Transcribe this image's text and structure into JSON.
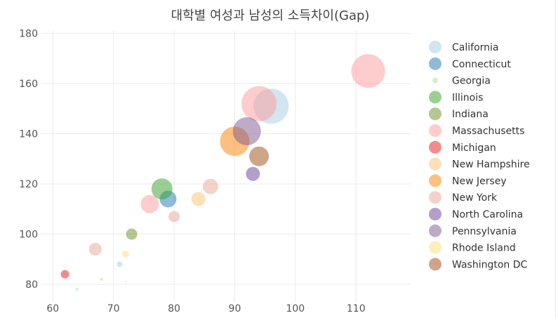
{
  "chart_data": {
    "type": "scatter",
    "title": "대학별 여성과 남성의 소득차이(Gap)",
    "xlabel": "",
    "ylabel": "",
    "xlim": [
      58,
      119
    ],
    "ylim": [
      73,
      181
    ],
    "xticks": [
      60,
      70,
      80,
      90,
      100,
      110
    ],
    "yticks": [
      80,
      100,
      120,
      140,
      160,
      180
    ],
    "grid": true,
    "legend_position": "right",
    "series": [
      {
        "name": "California",
        "color": "#a6cee3",
        "points": [
          {
            "x": 96,
            "y": 151,
            "size": 25
          },
          {
            "x": 71,
            "y": 88,
            "size": 4
          },
          {
            "x": 64,
            "y": 78,
            "size": 2
          }
        ]
      },
      {
        "name": "Connecticut",
        "color": "#1f78b4",
        "points": [
          {
            "x": 79,
            "y": 114,
            "size": 12
          }
        ]
      },
      {
        "name": "Georgia",
        "color": "#b2df8a",
        "points": [
          {
            "x": 68,
            "y": 82,
            "size": 2
          },
          {
            "x": 72,
            "y": 81,
            "size": 1
          }
        ]
      },
      {
        "name": "Illinois",
        "color": "#33a02c",
        "points": [
          {
            "x": 78,
            "y": 118,
            "size": 15
          }
        ]
      },
      {
        "name": "Indiana",
        "color": "#6b8e23",
        "points": [
          {
            "x": 73,
            "y": 100,
            "size": 8
          }
        ]
      },
      {
        "name": "Massachusetts",
        "color": "#fb9a99",
        "points": [
          {
            "x": 112,
            "y": 165,
            "size": 24
          },
          {
            "x": 94,
            "y": 152,
            "size": 25
          },
          {
            "x": 76,
            "y": 112,
            "size": 13
          }
        ]
      },
      {
        "name": "Michigan",
        "color": "#e31a1c",
        "points": [
          {
            "x": 62,
            "y": 84,
            "size": 6
          }
        ]
      },
      {
        "name": "New Hampshire",
        "color": "#fdbf6f",
        "points": [
          {
            "x": 84,
            "y": 114,
            "size": 10
          }
        ]
      },
      {
        "name": "New Jersey",
        "color": "#ff7f00",
        "points": [
          {
            "x": 90,
            "y": 137,
            "size": 21
          }
        ]
      },
      {
        "name": "New York",
        "color": "#e8a698",
        "points": [
          {
            "x": 86,
            "y": 119,
            "size": 11
          },
          {
            "x": 67,
            "y": 94,
            "size": 9
          },
          {
            "x": 80,
            "y": 107,
            "size": 8
          }
        ]
      },
      {
        "name": "North Carolina",
        "color": "#6a3d9a",
        "points": [
          {
            "x": 93,
            "y": 124,
            "size": 10
          }
        ]
      },
      {
        "name": "Pennsylvania",
        "color": "#7b5a8f",
        "points": [
          {
            "x": 92,
            "y": 141,
            "size": 20
          }
        ]
      },
      {
        "name": "Rhode Island",
        "color": "#f9e07a",
        "points": [
          {
            "x": 72,
            "y": 92,
            "size": 5
          }
        ]
      },
      {
        "name": "Washington DC",
        "color": "#a04a14",
        "points": [
          {
            "x": 94,
            "y": 131,
            "size": 14
          }
        ]
      }
    ]
  }
}
